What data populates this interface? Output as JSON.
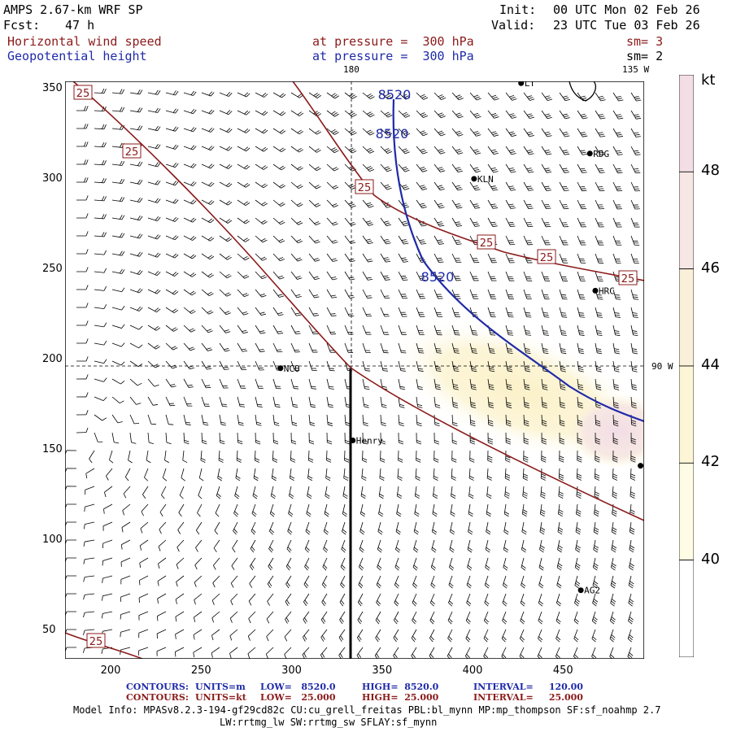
{
  "header": {
    "model": "AMPS 2.67-km WRF SP",
    "fcst_label": "Fcst:",
    "fcst_value": "47 h",
    "init_label": "Init:",
    "init_value": "00 UTC Mon 02 Feb 26",
    "valid_label": "Valid:",
    "valid_value": "23 UTC Tue 03 Feb 26",
    "field1": "Horizontal wind speed",
    "field2": "Geopotential height",
    "level1": "at pressure =  300 hPa",
    "level2": "at pressure =  300 hPa",
    "sm1": "sm= 3",
    "sm2": "sm= 2"
  },
  "map": {
    "lon_top_180": "180",
    "lon_top_135w": "135 W",
    "lon_right_90w": "90 W",
    "x_ticks": [
      "200",
      "250",
      "300",
      "350",
      "400",
      "450"
    ],
    "y_ticks": [
      "350",
      "300",
      "250",
      "200",
      "150",
      "100",
      "50"
    ],
    "stations": [
      {
        "name": "LT",
        "x": 427,
        "y": 353
      },
      {
        "name": "RDG",
        "x": 465,
        "y": 314
      },
      {
        "name": "KLN",
        "x": 401,
        "y": 300
      },
      {
        "name": "HRC",
        "x": 468,
        "y": 238
      },
      {
        "name": "NCO",
        "x": 294,
        "y": 195
      },
      {
        "name": "Henry",
        "x": 334,
        "y": 155
      },
      {
        "name": "",
        "x": 493,
        "y": 141
      },
      {
        "name": "AG2",
        "x": 460,
        "y": 72
      }
    ],
    "height_contour_label": "8520",
    "wind_contour_label": "25"
  },
  "colorbar": {
    "unit": "kt",
    "labels": [
      "48",
      "46",
      "44",
      "42",
      "40"
    ],
    "colors": [
      "#f3dee6",
      "#f6e6e4",
      "#faf0da",
      "#fcf6d7",
      "#fefce4",
      "#ffffff"
    ]
  },
  "footer": {
    "row1_label": "CONTOURS:",
    "row1_units": "UNITS=m",
    "row1_low": "LOW=   8520.0",
    "row1_high": "HIGH=  8520.0",
    "row1_interval": "INTERVAL=     120.00",
    "row2_label": "CONTOURS:",
    "row2_units": "UNITS=kt",
    "row2_low": "LOW=   25.000",
    "row2_high": "HIGH=  25.000",
    "row2_interval": "INTERVAL=     25.000",
    "model_info_1": "Model Info: MPASv8.2.3-194-gf29cd82c CU:cu_grell_freitas PBL:bl_mynn MP:mp_thompson SF:sf_noahmp 2.7",
    "model_info_2": "LW:rrtmg_lw SW:rrtmg_sw SFLAY:sf_mynn"
  }
}
